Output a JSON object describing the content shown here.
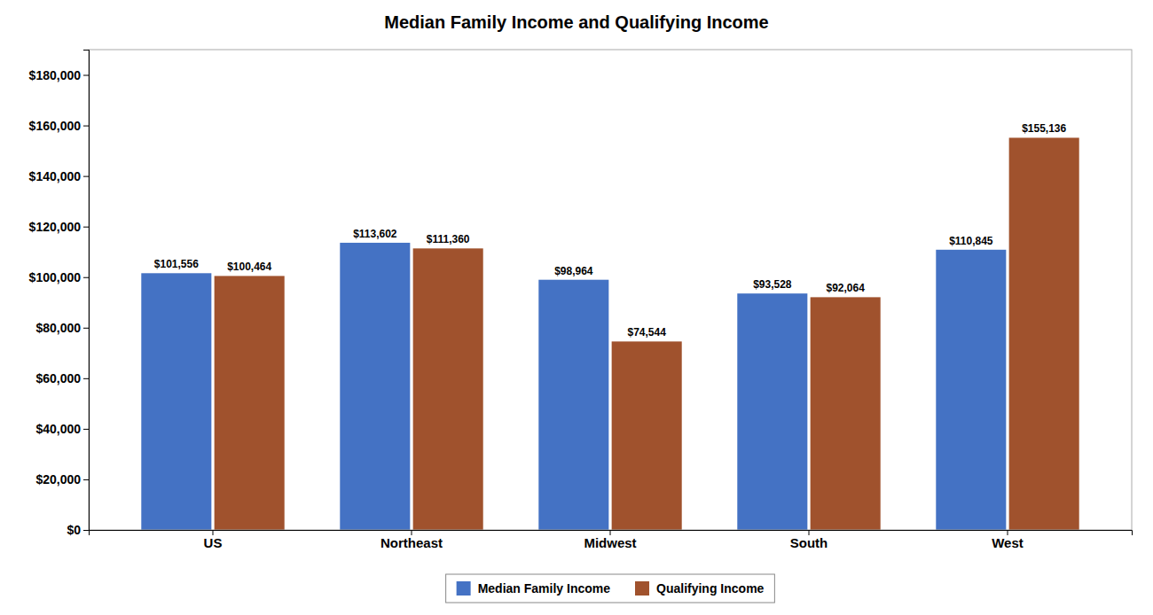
{
  "chart_data": {
    "type": "bar",
    "title": "Median Family Income and Qualifying Income",
    "categories": [
      "US",
      "Northeast",
      "Midwest",
      "South",
      "West"
    ],
    "series": [
      {
        "name": "Median Family Income",
        "color": "#4472C4",
        "values": [
          101556,
          113602,
          98964,
          93528,
          110845
        ],
        "value_labels": [
          "$101,556",
          "$113,602",
          "$98,964",
          "$93,528",
          "$110,845"
        ]
      },
      {
        "name": "Qualifying Income",
        "color": "#A0522D",
        "values": [
          100464,
          111360,
          74544,
          92064,
          155136
        ],
        "value_labels": [
          "$100,464",
          "$111,360",
          "$74,544",
          "$92,064",
          "$155,136"
        ]
      }
    ],
    "ylim": [
      0,
      190000
    ],
    "yticks": [
      {
        "value": 0,
        "label": "$0"
      },
      {
        "value": 20000,
        "label": "$20,000"
      },
      {
        "value": 40000,
        "label": "$40,000"
      },
      {
        "value": 60000,
        "label": "$60,000"
      },
      {
        "value": 80000,
        "label": "$80,000"
      },
      {
        "value": 100000,
        "label": "$100,000"
      },
      {
        "value": 120000,
        "label": "$120,000"
      },
      {
        "value": 140000,
        "label": "$140,000"
      },
      {
        "value": 160000,
        "label": "$160,000"
      },
      {
        "value": 180000,
        "label": "$180,000"
      }
    ],
    "grid": false,
    "legend": "bottom",
    "data_labels": true
  }
}
